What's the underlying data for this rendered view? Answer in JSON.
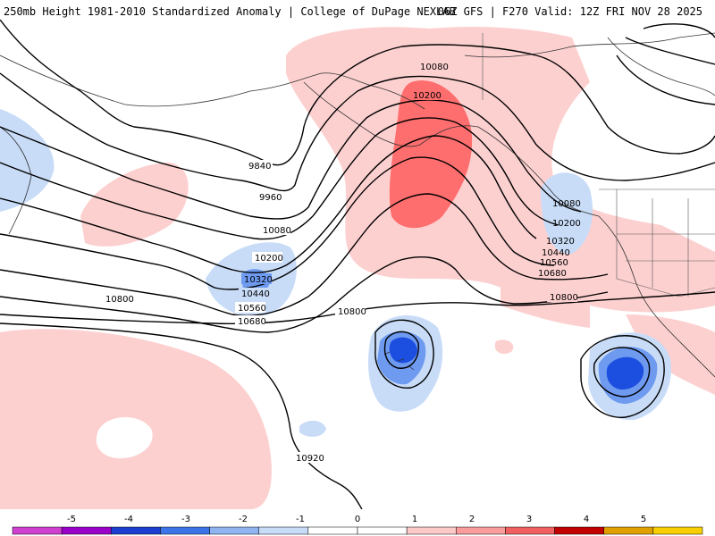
{
  "header": {
    "left": "250mb Height 1981-2010 Standardized Anomaly | College of DuPage NEXLAB",
    "right": "06Z GFS | F270 Valid: 12Z FRI NOV 28 2025"
  },
  "contours": {
    "labels": [
      "9840",
      "9960",
      "10080",
      "10200",
      "10320",
      "10440",
      "10560",
      "10680",
      "10800",
      "10920"
    ],
    "extra_labels": {
      "ridge_10080": "10080",
      "ridge_10200": "10200",
      "east_10080": "10080",
      "east_10200": "10200",
      "east_10320": "10320",
      "east_10440": "10440",
      "east_10560": "10560",
      "east_10680": "10680",
      "east_10800": "10800",
      "mid_10800": "10800",
      "west_10800": "10800"
    }
  },
  "legend": {
    "ticks": [
      "-5",
      "-4",
      "-3",
      "-2",
      "-1",
      "0",
      "1",
      "2",
      "3",
      "4",
      "5"
    ],
    "colors": [
      "#d040d0",
      "#9a00c8",
      "#1c3ed0",
      "#3c74e8",
      "#90b4f0",
      "#c8dcf8",
      "#ffffff",
      "#ffffff",
      "#fcc8c8",
      "#f89c9c",
      "#f06060",
      "#c00000",
      "#e0a000",
      "#f8d000"
    ]
  },
  "colors": {
    "pos1": "#fdd0d0",
    "pos2": "#ff6e6e",
    "neg1": "#c8dcf8",
    "neg2": "#6e9af0",
    "neg3": "#1c4fe0"
  }
}
